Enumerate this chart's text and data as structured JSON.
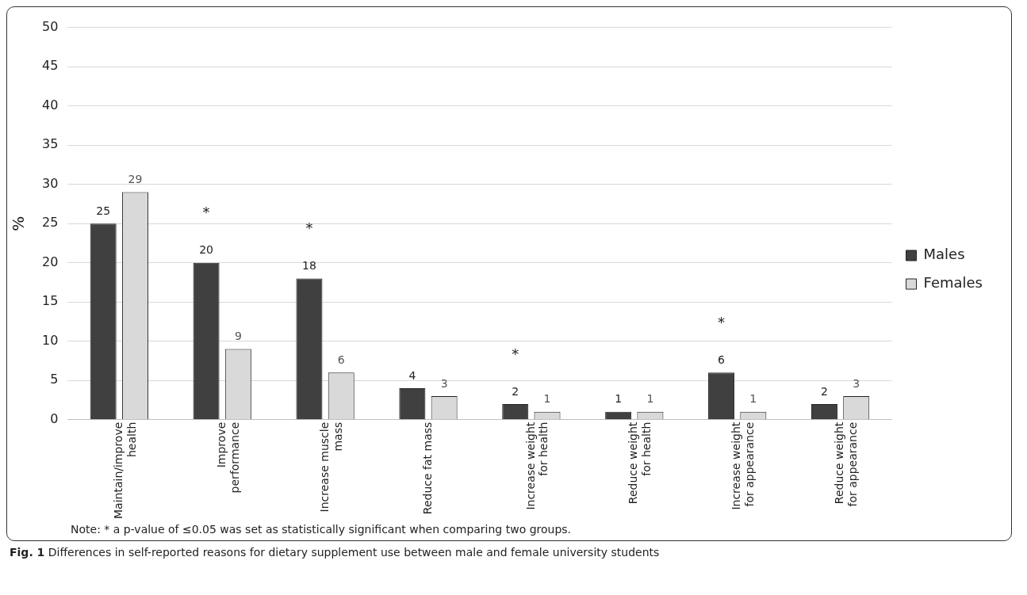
{
  "chart_data": {
    "type": "bar",
    "ylabel": "%",
    "categories": [
      "Maintain/improve health",
      "Improve performance",
      "Increase muscle mass",
      "Reduce fat mass",
      "Increase weight for health",
      "Reduce weight for health",
      "Increase weight for appearance",
      "Reduce weight for appearance"
    ],
    "series": [
      {
        "name": "Males",
        "color": "#404040",
        "values": [
          25,
          20,
          18,
          4,
          2,
          1,
          6,
          2
        ]
      },
      {
        "name": "Females",
        "color": "#d9d9d9",
        "values": [
          29,
          9,
          6,
          3,
          1,
          1,
          1,
          3
        ]
      }
    ],
    "ylim": [
      0,
      50
    ],
    "yticks": [
      0,
      5,
      10,
      15,
      20,
      25,
      30,
      35,
      40,
      45,
      50
    ],
    "grid": "y",
    "legend": "right",
    "data_labels": true,
    "annotations": [
      "*",
      "*",
      "*",
      "*",
      "Note: * a p-value of ≤0.05 was set as statistically significant when comparing two groups.",
      "Fig. 1 Differences in self-reported reasons for dietary supplement use between male and female university students"
    ]
  }
}
